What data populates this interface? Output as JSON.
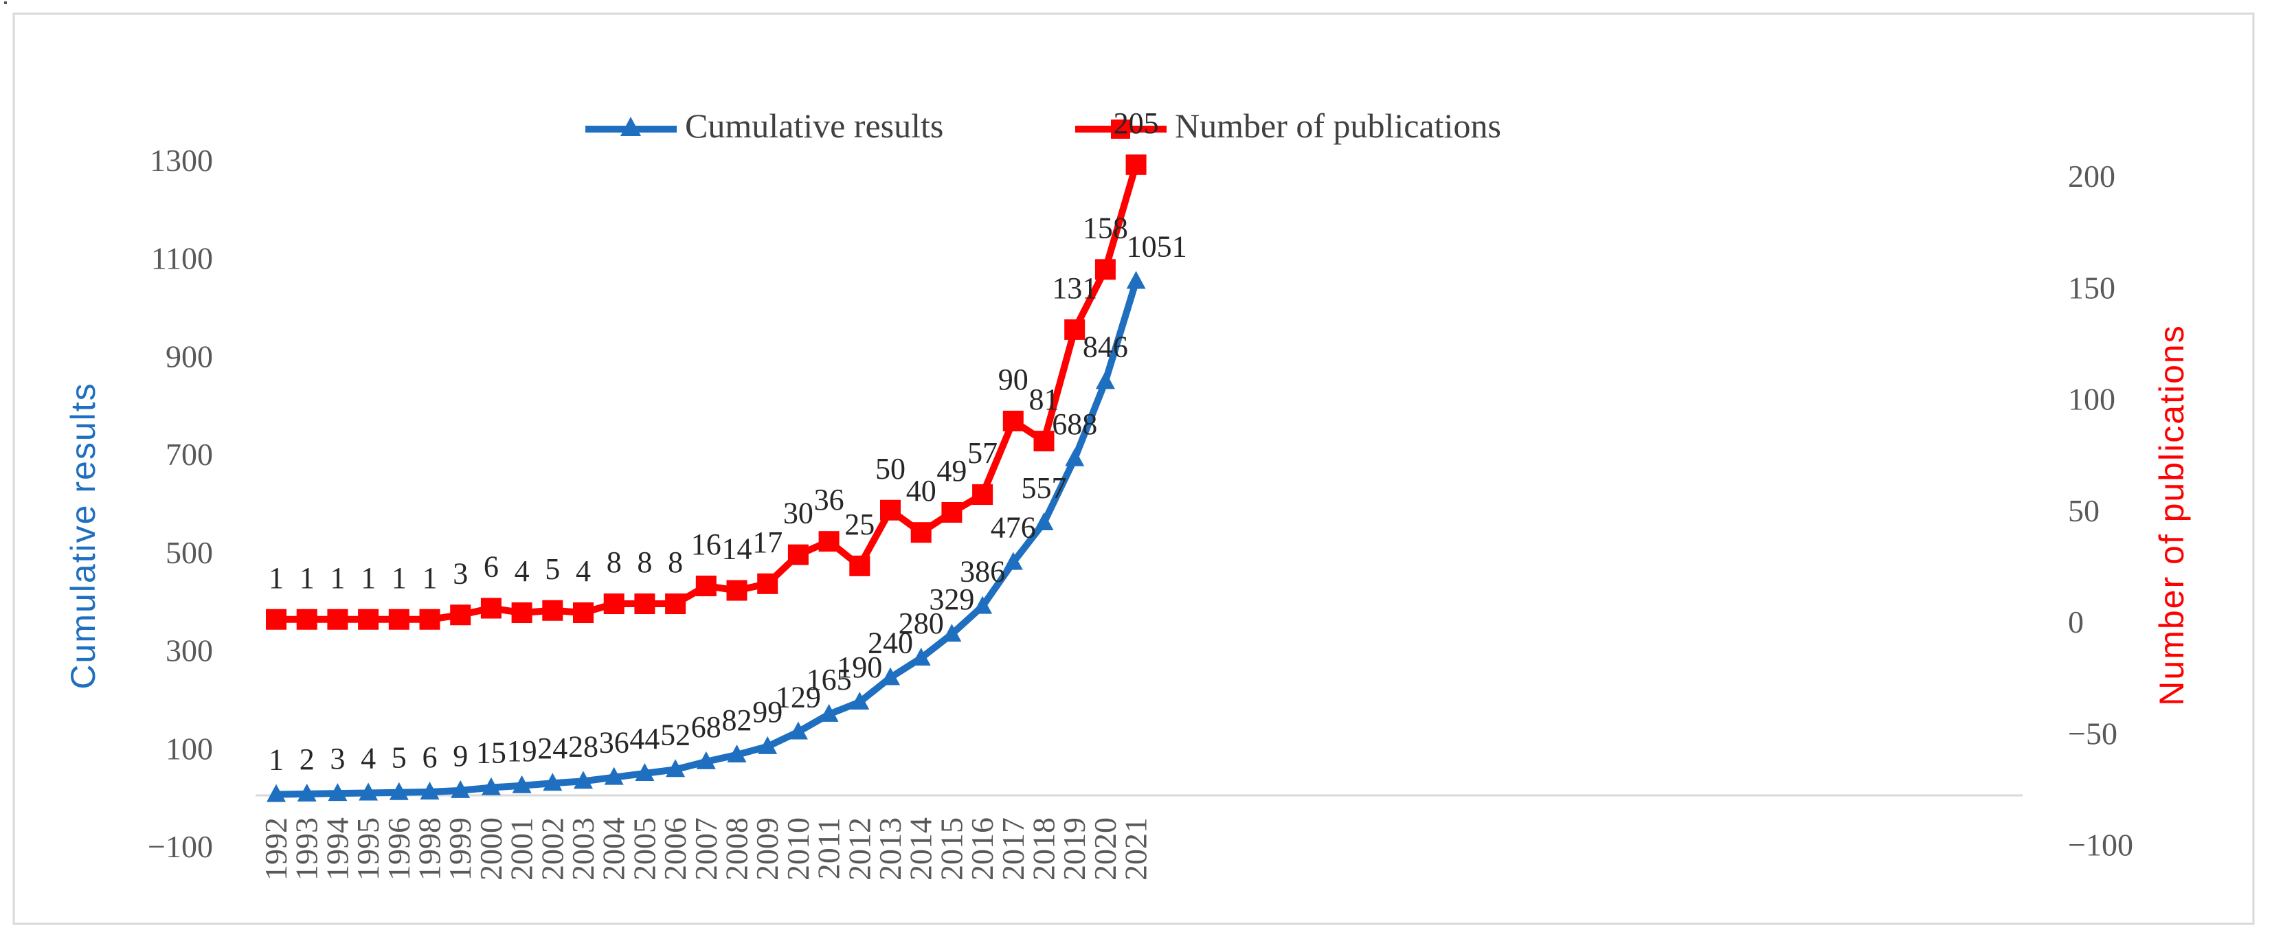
{
  "chart_data": {
    "type": "line",
    "categories": [
      "1992",
      "1993",
      "1994",
      "1995",
      "1996",
      "1998",
      "1999",
      "2000",
      "2001",
      "2002",
      "2003",
      "2004",
      "2005",
      "2006",
      "2007",
      "2008",
      "2009",
      "2010",
      "2011",
      "2012",
      "2013",
      "2014",
      "2015",
      "2016",
      "2017",
      "2018",
      "2019",
      "2020",
      "2021"
    ],
    "series": [
      {
        "name": "Cumulative results",
        "axis": "left",
        "color": "#1f6fc0",
        "marker": "triangle",
        "values": [
          1,
          2,
          3,
          4,
          5,
          6,
          9,
          15,
          19,
          24,
          28,
          36,
          44,
          52,
          68,
          82,
          99,
          129,
          165,
          190,
          240,
          280,
          329,
          386,
          476,
          557,
          688,
          846,
          1051
        ],
        "labels": [
          "1",
          "2",
          "3",
          "4",
          "5",
          "6",
          "9",
          "15",
          "19",
          "24",
          "28",
          "36",
          "44",
          "52",
          "68",
          "82",
          "99",
          "129",
          "165",
          "190",
          "240",
          "280",
          "329",
          "386",
          "476",
          "557",
          "688",
          "846",
          "1051"
        ]
      },
      {
        "name": "Number of publications",
        "axis": "right",
        "color": "#ff0000",
        "marker": "square",
        "values": [
          1,
          1,
          1,
          1,
          1,
          1,
          3,
          6,
          4,
          5,
          4,
          8,
          8,
          8,
          16,
          14,
          17,
          30,
          36,
          25,
          50,
          40,
          49,
          57,
          90,
          81,
          131,
          158,
          205
        ],
        "labels": [
          "1",
          "1",
          "1",
          "1",
          "1",
          "1",
          "3",
          "6",
          "4",
          "5",
          "4",
          "8",
          "8",
          "8",
          "16",
          "14",
          "17",
          "30",
          "36",
          "25",
          "50",
          "40",
          "49",
          "57",
          "90",
          "81",
          "131",
          "158",
          "205"
        ]
      }
    ],
    "y_left": {
      "label": "Cumulative results",
      "ylim": [
        -100,
        1300
      ],
      "ticks": [
        -100,
        100,
        300,
        500,
        700,
        900,
        1100,
        1300
      ],
      "tick_labels": [
        "−100",
        "100",
        "300",
        "500",
        "700",
        "900",
        "1100",
        "1300"
      ],
      "color": "#1f6fc0"
    },
    "y_right": {
      "label": "Number of publications",
      "ylim": [
        -100,
        200
      ],
      "ticks": [
        -100,
        -50,
        0,
        50,
        100,
        150,
        200
      ],
      "tick_labels": [
        "−100",
        "−50",
        "0",
        "50",
        "100",
        "150",
        "200"
      ],
      "color": "#ff0000"
    },
    "legend_position": "top-center",
    "grid": false
  }
}
